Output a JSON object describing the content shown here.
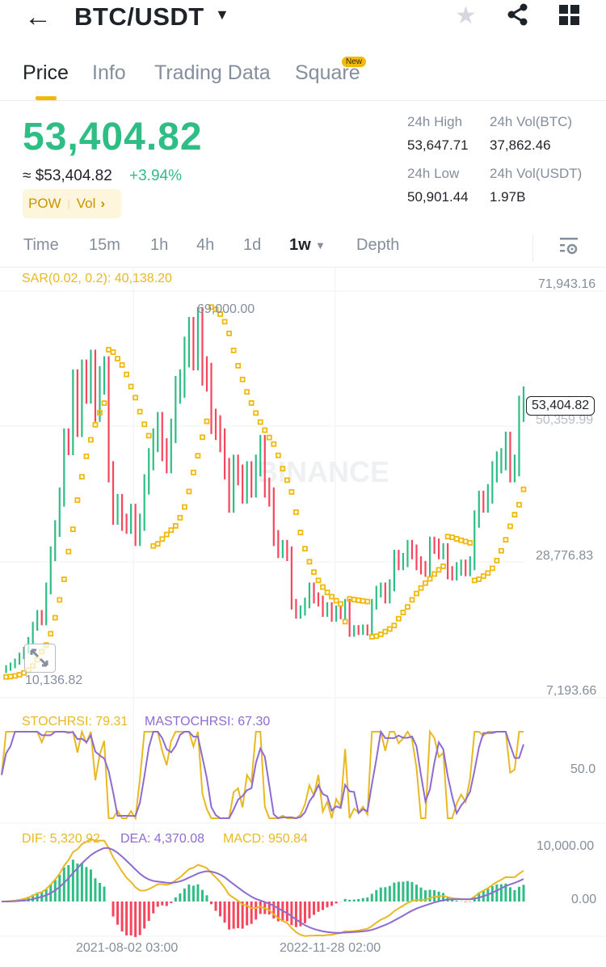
{
  "header": {
    "back_icon": "←",
    "pair": "BTC/USDT",
    "caret": "▼",
    "favorite_icon": "★"
  },
  "tabs": [
    {
      "label": "Price",
      "active": true
    },
    {
      "label": "Info"
    },
    {
      "label": "Trading Data"
    },
    {
      "label": "Square",
      "badge": "New"
    }
  ],
  "ticker": {
    "last_price": "53,404.82",
    "approx_usd": "≈ $53,404.82",
    "change_pct": "+3.94%",
    "tags": [
      "POW",
      "Vol"
    ],
    "tag_chevron": "›"
  },
  "stats": {
    "high_label": "24h High",
    "high_value": "53,647.71",
    "vol_btc_label": "24h Vol(BTC)",
    "vol_btc_value": "37,862.46",
    "low_label": "24h Low",
    "low_value": "50,901.44",
    "vol_usdt_label": "24h Vol(USDT)",
    "vol_usdt_value": "1.97B"
  },
  "intervals": [
    {
      "label": "Time"
    },
    {
      "label": "15m"
    },
    {
      "label": "1h"
    },
    {
      "label": "4h"
    },
    {
      "label": "1d"
    },
    {
      "label": "1w",
      "active": true
    },
    {
      "label": "Depth"
    }
  ],
  "colors": {
    "up": "#2ebd85",
    "down": "#f6465d",
    "sar": "#f0b90b",
    "stoch": "#e8b923",
    "mastoch": "#8d6bd1",
    "accent": "#f0b90b"
  },
  "main_chart": {
    "indicator_label": "SAR(0.02, 0.2): 40,138.20",
    "y_axis": [
      "71,943.16",
      "50,359.99",
      "28,776.83",
      "7,193.66"
    ],
    "current_price_tag": "53,404.82",
    "high_marker": "69,000.00",
    "low_marker": "10,136.82",
    "watermark": "BINANCE"
  },
  "stochrsi": {
    "label_stoch": "STOCHRSI: 79.31",
    "label_ma": "MASTOCHRSI: 67.30",
    "y_axis": [
      "50.0"
    ]
  },
  "macd": {
    "label_dif": "DIF: 5,320.92",
    "label_dea": "DEA: 4,370.08",
    "label_macd": "MACD: 950.84",
    "y_axis": [
      "10,000.00",
      "0.00"
    ]
  },
  "x_axis": [
    "2021-08-02 03:00",
    "2022-11-28 02:00"
  ],
  "chart_data": {
    "type": "candlestick",
    "title": "BTC/USDT 1w",
    "ylim": [
      7193.66,
      71943.16
    ],
    "closes": [
      10500,
      10900,
      11300,
      11900,
      12800,
      13700,
      15200,
      17500,
      19300,
      18400,
      23500,
      29000,
      33000,
      38000,
      47000,
      46500,
      56000,
      49500,
      57500,
      55000,
      59000,
      52000,
      56500,
      58000,
      42000,
      35000,
      37000,
      34000,
      33500,
      35500,
      31500,
      34000,
      40000,
      44000,
      47000,
      49500,
      45500,
      43500,
      48500,
      55000,
      56000,
      61000,
      64000,
      60500,
      65500,
      58000,
      57000,
      50000,
      49000,
      47000,
      42500,
      37000,
      43000,
      41500,
      38500,
      42000,
      39500,
      43000,
      46000,
      39500,
      38000,
      31500,
      29500,
      30000,
      29000,
      21000,
      19500,
      20000,
      21200,
      23500,
      22000,
      21500,
      19800,
      20500,
      19000,
      20000,
      19400,
      21000,
      16500,
      17000,
      16800,
      17100,
      16700,
      21000,
      23000,
      23500,
      22000,
      24000,
      28500,
      27500,
      28000,
      30000,
      29300,
      27500,
      26800,
      26400,
      30500,
      30200,
      29300,
      29500,
      26000,
      25800,
      26600,
      27000,
      26500,
      27500,
      34500,
      37500,
      37000,
      38500,
      42000,
      43500,
      44000,
      46500,
      42000,
      43000,
      52000,
      53404.82
    ],
    "sar_note": "Parabolic SAR dots plotted below/above candles",
    "stochrsi_range": [
      0,
      100
    ],
    "macd_range": [
      -10000,
      15000
    ]
  }
}
